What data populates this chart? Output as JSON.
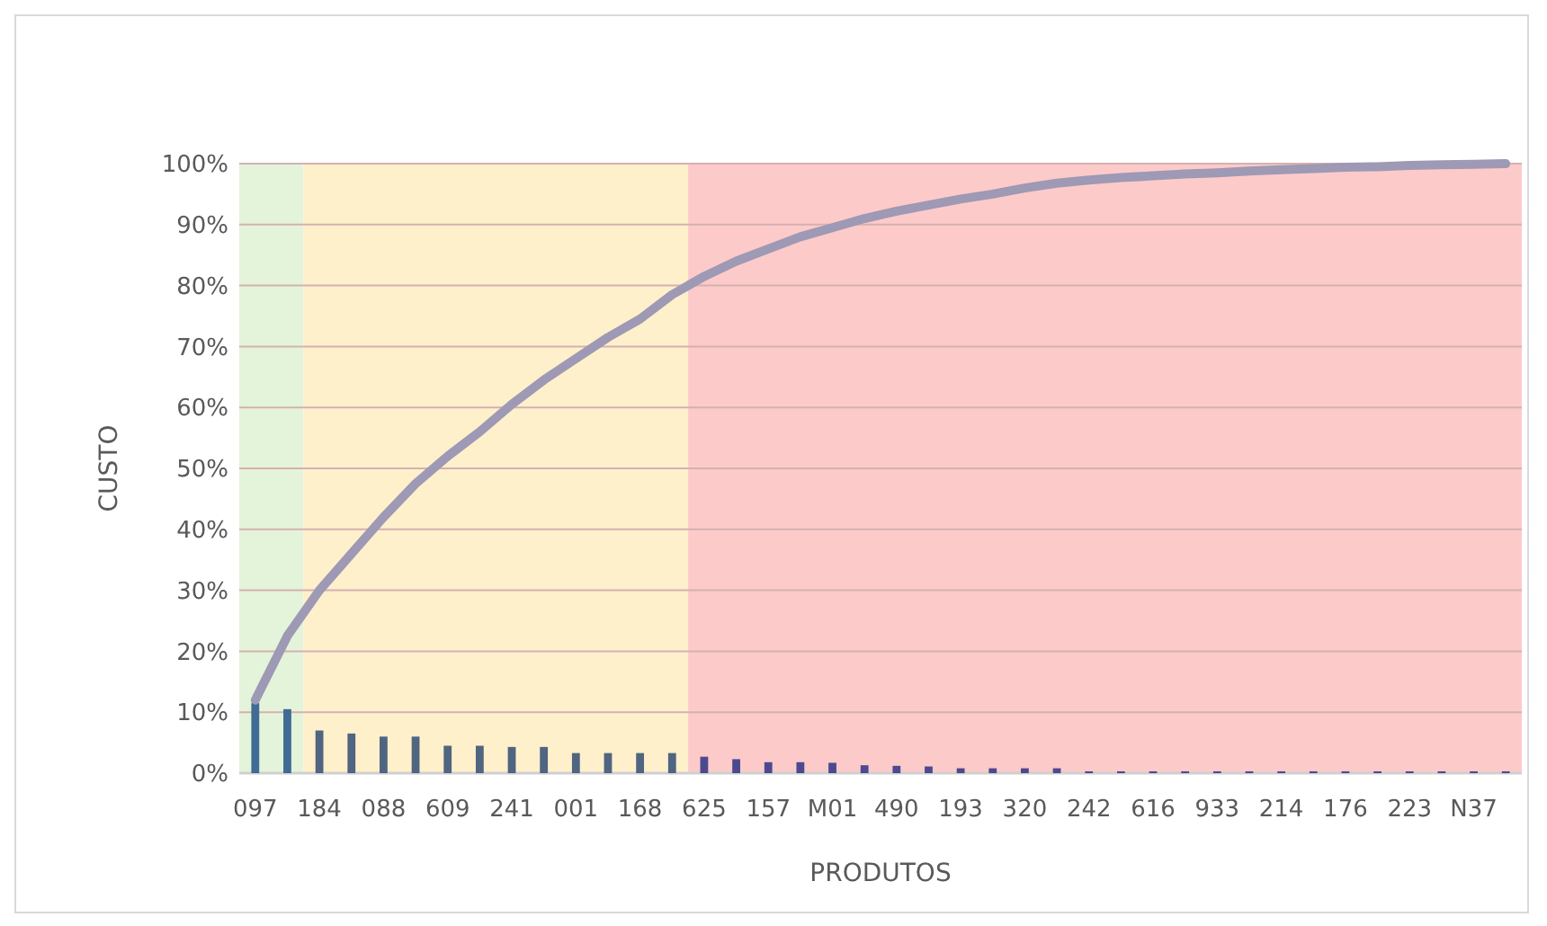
{
  "chart_data": {
    "type": "bar",
    "xlabel": "PRODUTOS",
    "ylabel": "CUSTO",
    "categories": [
      "097",
      null,
      "184",
      null,
      "088",
      null,
      "609",
      null,
      "241",
      null,
      "001",
      null,
      "168",
      null,
      "625",
      null,
      "157",
      null,
      "M01",
      null,
      "490",
      null,
      "193",
      null,
      "320",
      null,
      "242",
      null,
      "616",
      null,
      "933",
      null,
      "214",
      null,
      "176",
      null,
      "223",
      null,
      "N37",
      null
    ],
    "series": [
      {
        "colors": [
          "#3f6b94",
          "#3f6b94",
          "#4f6580",
          "#4f6580",
          "#4f6580",
          "#4f6580",
          "#4f6580",
          "#4f6580",
          "#4f6580",
          "#4f6580",
          "#4f6580",
          "#4f6580",
          "#4f6580",
          "#4f6580",
          "#4b4a8f",
          "#4b4a8f",
          "#4b4a8f",
          "#4b4a8f",
          "#4b4a8f",
          "#4b4a8f",
          "#4b4a8f",
          "#4b4a8f",
          "#4b4a8f",
          "#4b4a8f",
          "#4b4a8f",
          "#4b4a8f",
          "#4b4a8f",
          "#4b4a8f",
          "#4b4a8f",
          "#4b4a8f",
          "#4b4a8f",
          "#4b4a8f",
          "#4b4a8f",
          "#4b4a8f",
          "#4b4a8f",
          "#4b4a8f",
          "#4b4a8f",
          "#4b4a8f",
          "#4b4a8f",
          "#4b4a8f"
        ],
        "values": [
          11.5,
          10.5,
          7,
          6.5,
          6,
          6,
          4.5,
          4.5,
          4.3,
          4.3,
          3.3,
          3.3,
          3.3,
          3.3,
          2.7,
          2.3,
          1.8,
          1.8,
          1.7,
          1.3,
          1.2,
          1.1,
          0.8,
          0.8,
          0.8,
          0.8,
          0.3,
          0.3,
          0.3,
          0.3,
          0.3,
          0.3,
          0.3,
          0.3,
          0.3,
          0.3,
          0.3,
          0.3,
          0.3,
          0.3
        ]
      },
      {
        "type": "line",
        "color": "#9e99b4",
        "values": [
          12,
          22.5,
          30,
          36,
          42,
          47.5,
          52,
          56,
          60.5,
          64.5,
          68,
          71.5,
          74.5,
          78.5,
          81.5,
          84,
          86,
          88,
          89.5,
          91,
          92.2,
          93.2,
          94.2,
          95,
          96,
          96.8,
          97.3,
          97.7,
          98,
          98.3,
          98.5,
          98.8,
          99,
          99.2,
          99.4,
          99.5,
          99.7,
          99.8,
          99.9,
          100
        ]
      }
    ],
    "ylim": [
      0,
      100
    ],
    "yticks": [
      {
        "value": 0,
        "label": "0%"
      },
      {
        "value": 10,
        "label": "10%"
      },
      {
        "value": 20,
        "label": "20%"
      },
      {
        "value": 30,
        "label": "30%"
      },
      {
        "value": 40,
        "label": "40%"
      },
      {
        "value": 50,
        "label": "50%"
      },
      {
        "value": 60,
        "label": "60%"
      },
      {
        "value": 70,
        "label": "70%"
      },
      {
        "value": 80,
        "label": "80%"
      },
      {
        "value": 90,
        "label": "90%"
      },
      {
        "value": 100,
        "label": "100%"
      }
    ],
    "grid": "y"
  }
}
